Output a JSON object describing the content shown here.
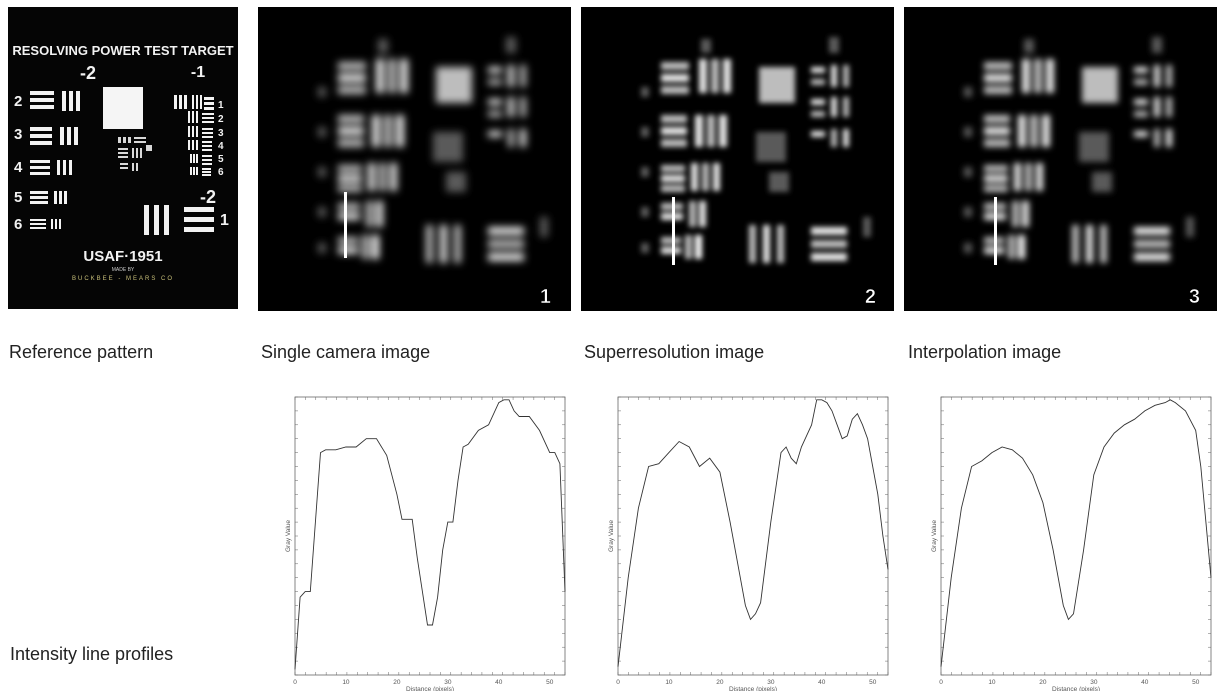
{
  "reference": {
    "title": "RESOLVING POWER TEST TARGET",
    "group_left": "-2",
    "group_right": "-1",
    "group_right_lower": "-2",
    "left_numbers": [
      "2",
      "3",
      "4",
      "5",
      "6"
    ],
    "right_numbers": [
      "1",
      "2",
      "3",
      "4",
      "5",
      "6"
    ],
    "right_lower_number": "1",
    "usaf": "USAF·1951",
    "made_by": "MADE BY",
    "maker": "BUCKBEE - MEARS CO"
  },
  "panels": [
    {
      "id": "camera",
      "number": "1",
      "caption": "Single camera image"
    },
    {
      "id": "superres",
      "number": "2",
      "caption": "Superresolution image"
    },
    {
      "id": "interp",
      "number": "3",
      "caption": "Interpolation image"
    }
  ],
  "reference_caption": "Reference pattern",
  "profiles_label": "Intensity line profiles",
  "colors": {
    "background": "#ffffff",
    "panel": "#000000",
    "line": "#333333"
  },
  "chart_data": [
    {
      "type": "line",
      "title": "",
      "xlabel": "Distance (pixels)",
      "ylabel": "Gray Value",
      "xlim": [
        0,
        53
      ],
      "ylim": [
        0,
        1
      ],
      "xticks": [
        0,
        10,
        20,
        30,
        40,
        50
      ],
      "grid": false,
      "x": [
        0,
        1,
        2,
        3,
        4,
        5,
        6,
        8,
        10,
        12,
        14,
        16,
        18,
        20,
        21,
        22,
        23,
        24,
        25,
        26,
        27,
        28,
        29,
        30,
        31,
        32,
        33,
        34,
        36,
        38,
        40,
        41,
        42,
        43,
        44,
        46,
        48,
        50,
        51,
        52,
        53
      ],
      "series": [
        {
          "values": [
            0.02,
            0.28,
            0.3,
            0.3,
            0.55,
            0.8,
            0.81,
            0.81,
            0.82,
            0.82,
            0.85,
            0.85,
            0.79,
            0.65,
            0.56,
            0.56,
            0.56,
            0.42,
            0.3,
            0.18,
            0.18,
            0.28,
            0.45,
            0.55,
            0.55,
            0.7,
            0.82,
            0.83,
            0.88,
            0.9,
            0.98,
            0.99,
            0.99,
            0.95,
            0.93,
            0.93,
            0.88,
            0.8,
            0.8,
            0.76,
            0.3
          ]
        }
      ]
    },
    {
      "type": "line",
      "title": "",
      "xlabel": "Distance (pixels)",
      "ylabel": "Gray Value",
      "xlim": [
        0,
        53
      ],
      "ylim": [
        0,
        1
      ],
      "xticks": [
        0,
        10,
        20,
        30,
        40,
        50
      ],
      "grid": false,
      "x": [
        0,
        2,
        4,
        6,
        8,
        10,
        12,
        14,
        16,
        18,
        20,
        22,
        24,
        25,
        26,
        27,
        28,
        30,
        32,
        33,
        34,
        35,
        36,
        38,
        39,
        40,
        41,
        42,
        43,
        44,
        45,
        46,
        47,
        48,
        49,
        50,
        51,
        52,
        53
      ],
      "series": [
        {
          "values": [
            0.03,
            0.35,
            0.6,
            0.75,
            0.76,
            0.8,
            0.84,
            0.82,
            0.75,
            0.78,
            0.73,
            0.55,
            0.35,
            0.25,
            0.2,
            0.22,
            0.26,
            0.55,
            0.8,
            0.82,
            0.78,
            0.76,
            0.82,
            0.9,
            0.99,
            0.99,
            0.98,
            0.95,
            0.9,
            0.85,
            0.86,
            0.92,
            0.94,
            0.9,
            0.85,
            0.75,
            0.65,
            0.5,
            0.38
          ]
        }
      ]
    },
    {
      "type": "line",
      "title": "",
      "xlabel": "Distance (pixels)",
      "ylabel": "Gray Value",
      "xlim": [
        0,
        53
      ],
      "ylim": [
        0,
        1
      ],
      "xticks": [
        0,
        10,
        20,
        30,
        40,
        50
      ],
      "grid": false,
      "x": [
        0,
        2,
        4,
        6,
        8,
        10,
        12,
        14,
        16,
        18,
        20,
        22,
        24,
        25,
        26,
        28,
        30,
        32,
        34,
        36,
        38,
        40,
        42,
        44,
        45,
        46,
        48,
        50,
        51,
        52,
        53
      ],
      "series": [
        {
          "values": [
            0.03,
            0.35,
            0.6,
            0.75,
            0.77,
            0.8,
            0.82,
            0.81,
            0.78,
            0.72,
            0.62,
            0.45,
            0.25,
            0.2,
            0.22,
            0.45,
            0.72,
            0.82,
            0.87,
            0.9,
            0.92,
            0.95,
            0.97,
            0.98,
            0.99,
            0.98,
            0.95,
            0.88,
            0.75,
            0.55,
            0.35
          ]
        }
      ]
    }
  ]
}
